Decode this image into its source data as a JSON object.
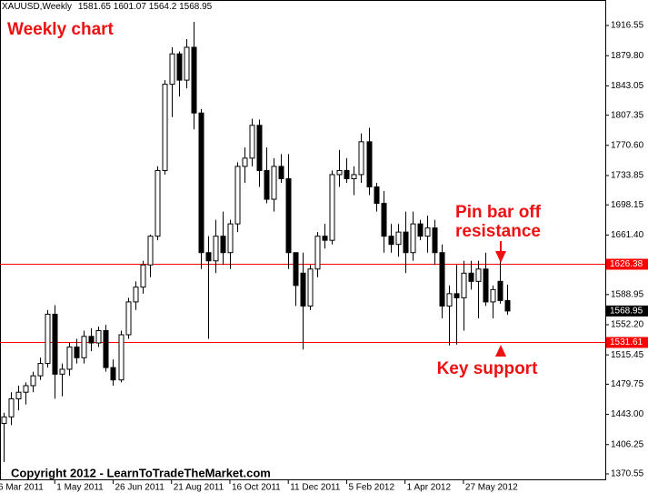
{
  "chart_data": {
    "type": "candlestick",
    "symbol": "XAUUSD,Weekly",
    "title": "Weekly chart",
    "annotations": [
      "Pin bar off",
      "resistance",
      "Key support"
    ],
    "footer": "Copyright 2012 - LearnToTradeTheMarket.com",
    "categories": [
      "6 Mar 2011",
      null,
      null,
      null,
      null,
      null,
      null,
      null,
      "1 May 2011",
      null,
      null,
      null,
      null,
      null,
      null,
      null,
      "26 Jun 2011",
      null,
      null,
      null,
      null,
      null,
      null,
      null,
      "21 Aug 2011",
      null,
      null,
      null,
      null,
      null,
      null,
      null,
      "16 Oct 2011",
      null,
      null,
      null,
      null,
      null,
      null,
      null,
      "11 Dec 2011",
      null,
      null,
      null,
      null,
      null,
      null,
      null,
      "5 Feb 2012",
      null,
      null,
      null,
      null,
      null,
      null,
      null,
      "1 Apr 2012",
      null,
      null,
      null,
      null,
      null,
      null,
      null,
      "27 May 2012",
      null,
      null,
      null,
      null,
      null,
      null
    ],
    "open": [
      1420,
      1432,
      1440,
      1462,
      1470,
      1478,
      1490,
      1505,
      1565,
      1492,
      1498,
      1525,
      1512,
      1538,
      1530,
      1545,
      1500,
      1485,
      1540,
      1580,
      1598,
      1625,
      1660,
      1740,
      1845,
      1882,
      1850,
      1890,
      1810,
      1640,
      1630,
      1660,
      1640,
      1675,
      1745,
      1755,
      1795,
      1740,
      1705,
      1745,
      1730,
      1640,
      1615,
      1575,
      1620,
      1660,
      1655,
      1735,
      1740,
      1730,
      1735,
      1775,
      1720,
      1700,
      1660,
      1650,
      1665,
      1640,
      1675,
      1660,
      1670,
      1640,
      1575,
      1590,
      1585,
      1615,
      1605,
      1620,
      1580,
      1605,
      1581.65
    ],
    "high": [
      1440,
      1445,
      1470,
      1478,
      1482,
      1495,
      1512,
      1570,
      1576,
      1505,
      1530,
      1535,
      1545,
      1548,
      1550,
      1552,
      1510,
      1545,
      1585,
      1605,
      1630,
      1662,
      1745,
      1850,
      1890,
      1885,
      1900,
      1921,
      1815,
      1660,
      1680,
      1690,
      1680,
      1750,
      1768,
      1803,
      1802,
      1768,
      1755,
      1760,
      1760,
      1640,
      1640,
      1625,
      1665,
      1675,
      1740,
      1765,
      1755,
      1745,
      1785,
      1792,
      1725,
      1715,
      1675,
      1675,
      1690,
      1690,
      1680,
      1685,
      1680,
      1650,
      1600,
      1625,
      1630,
      1630,
      1630,
      1640,
      1600,
      1630,
      1601.07
    ],
    "low": [
      1405,
      1385,
      1430,
      1448,
      1455,
      1470,
      1485,
      1500,
      1462,
      1465,
      1490,
      1505,
      1505,
      1520,
      1525,
      1495,
      1478,
      1482,
      1535,
      1570,
      1590,
      1610,
      1655,
      1735,
      1805,
      1830,
      1840,
      1790,
      1620,
      1535,
      1615,
      1625,
      1620,
      1665,
      1725,
      1745,
      1720,
      1700,
      1690,
      1725,
      1620,
      1575,
      1522,
      1570,
      1610,
      1645,
      1650,
      1720,
      1725,
      1710,
      1725,
      1710,
      1690,
      1640,
      1640,
      1635,
      1615,
      1630,
      1655,
      1640,
      1625,
      1560,
      1527,
      1528,
      1545,
      1595,
      1560,
      1575,
      1560,
      1578,
      1564.2
    ],
    "close": [
      1432,
      1440,
      1462,
      1470,
      1478,
      1490,
      1505,
      1565,
      1492,
      1498,
      1525,
      1512,
      1538,
      1530,
      1545,
      1500,
      1485,
      1540,
      1580,
      1598,
      1625,
      1660,
      1740,
      1845,
      1882,
      1850,
      1890,
      1810,
      1640,
      1630,
      1660,
      1640,
      1675,
      1745,
      1755,
      1795,
      1740,
      1705,
      1745,
      1730,
      1640,
      1600,
      1575,
      1620,
      1660,
      1655,
      1735,
      1740,
      1730,
      1735,
      1775,
      1720,
      1700,
      1660,
      1650,
      1665,
      1640,
      1675,
      1660,
      1670,
      1640,
      1575,
      1590,
      1585,
      1615,
      1605,
      1620,
      1580,
      1595,
      1581.65,
      1568.95
    ],
    "up_color": "#ffffff",
    "down_color": "#000000",
    "ylim": [
      1362.8,
      1947.6
    ],
    "yticks": [
      1916.55,
      {
        "value": 1879.8,
        "label": "1879.80"
      },
      1843.05,
      1807.35,
      {
        "value": 1770.6,
        "label": "1770.60"
      },
      1733.85,
      1698.15,
      {
        "value": 1661.4,
        "label": "1661.40"
      },
      1588.95,
      {
        "value": 1552.2,
        "label": "1552.20"
      },
      1515.45,
      1479.75,
      {
        "value": 1443,
        "label": "1443.00"
      },
      1406.25,
      1370.55
    ],
    "hlines": [
      {
        "value": 1626.38,
        "color": "#ff0000"
      },
      {
        "value": 1531.61,
        "color": "#ff0000"
      }
    ]
  }
}
